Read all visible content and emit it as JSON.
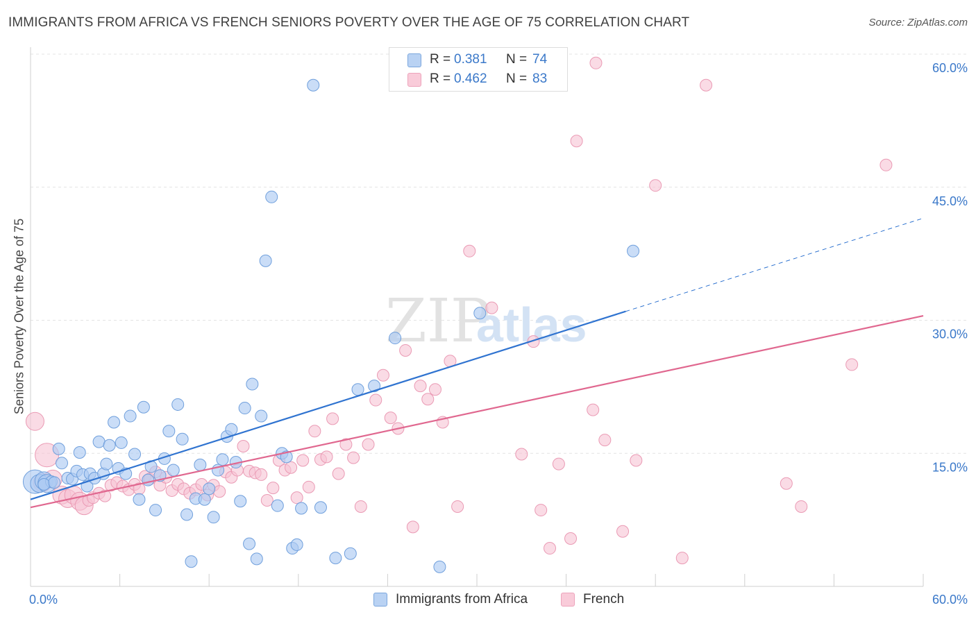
{
  "header": {
    "title": "IMMIGRANTS FROM AFRICA VS FRENCH SENIORS POVERTY OVER THE AGE OF 75 CORRELATION CHART",
    "source": "Source: ZipAtlas.com"
  },
  "watermark": {
    "zip": "ZIP",
    "atlas": "atlas"
  },
  "legend": {
    "r_label": "R =",
    "n_label": "N =",
    "series": [
      {
        "r": "0.381",
        "n": "74"
      },
      {
        "r": "0.462",
        "n": "83"
      }
    ]
  },
  "colors": {
    "blue_fill": "#aecbf2",
    "blue_stroke": "#6f9fdc",
    "blue_line": "#2f73d0",
    "pink_fill": "#f7c3d3",
    "pink_stroke": "#ea9ab4",
    "pink_line": "#e0678f",
    "tick_label": "#3a78c9",
    "grid": "#e3e3e3"
  },
  "chart_data": {
    "type": "scatter",
    "title": "IMMIGRANTS FROM AFRICA VS FRENCH SENIORS POVERTY OVER THE AGE OF 75 CORRELATION CHART",
    "xlabel": "",
    "ylabel": "Seniors Poverty Over the Age of 75",
    "xlim": [
      0,
      60
    ],
    "ylim": [
      0,
      60
    ],
    "x_tick_labels": [
      "0.0%",
      "60.0%"
    ],
    "y_tick_labels": [
      "15.0%",
      "30.0%",
      "45.0%",
      "60.0%"
    ],
    "y_ticks": [
      15,
      30,
      45,
      60
    ],
    "grid": true,
    "legend_position": "top-center",
    "series": [
      {
        "name": "Immigrants from Africa",
        "r": 0.381,
        "n": 74,
        "trend": {
          "x0": 0,
          "y0": 9.8,
          "x1": 40,
          "y1": 31.0,
          "dashed_to_x": 60,
          "dashed_to_y": 41.5
        },
        "points": [
          [
            0.3,
            11.8,
            3
          ],
          [
            0.6,
            11.6,
            2
          ],
          [
            0.9,
            11.9,
            2
          ],
          [
            1.1,
            11.6,
            2
          ],
          [
            1.4,
            11.8,
            1
          ],
          [
            1.9,
            15.5,
            1
          ],
          [
            2.1,
            13.9,
            1
          ],
          [
            2.5,
            12.2,
            1
          ],
          [
            2.8,
            12.1,
            1
          ],
          [
            3.1,
            13.0,
            1
          ],
          [
            3.3,
            15.1,
            1
          ],
          [
            3.5,
            12.6,
            1
          ],
          [
            3.8,
            11.3,
            1
          ],
          [
            4.0,
            12.7,
            1
          ],
          [
            4.3,
            12.2,
            1
          ],
          [
            4.6,
            16.3,
            1
          ],
          [
            4.9,
            12.7,
            1
          ],
          [
            5.1,
            13.8,
            1
          ],
          [
            5.3,
            15.9,
            1
          ],
          [
            5.6,
            18.5,
            1
          ],
          [
            5.9,
            13.3,
            1
          ],
          [
            6.1,
            16.2,
            1
          ],
          [
            6.4,
            12.7,
            1
          ],
          [
            6.7,
            19.2,
            1
          ],
          [
            7.0,
            14.9,
            1
          ],
          [
            7.3,
            9.8,
            1
          ],
          [
            7.6,
            20.2,
            1
          ],
          [
            7.9,
            12.0,
            1
          ],
          [
            8.1,
            13.5,
            1
          ],
          [
            8.4,
            8.6,
            1
          ],
          [
            8.7,
            12.5,
            1
          ],
          [
            9.0,
            14.4,
            1
          ],
          [
            9.3,
            17.5,
            1
          ],
          [
            9.6,
            13.1,
            1
          ],
          [
            9.9,
            20.5,
            1
          ],
          [
            10.2,
            16.6,
            1
          ],
          [
            10.5,
            8.1,
            1
          ],
          [
            10.8,
            2.8,
            1
          ],
          [
            11.1,
            9.9,
            1
          ],
          [
            11.4,
            13.7,
            1
          ],
          [
            11.7,
            9.8,
            1
          ],
          [
            12.0,
            11.0,
            1
          ],
          [
            12.3,
            7.8,
            1
          ],
          [
            12.6,
            13.1,
            1
          ],
          [
            12.9,
            14.3,
            1
          ],
          [
            13.2,
            16.9,
            1
          ],
          [
            13.5,
            17.7,
            1
          ],
          [
            13.8,
            14.0,
            1
          ],
          [
            14.1,
            9.6,
            1
          ],
          [
            14.4,
            20.1,
            1
          ],
          [
            14.7,
            4.8,
            1
          ],
          [
            14.9,
            22.8,
            1
          ],
          [
            15.2,
            3.1,
            1
          ],
          [
            15.5,
            19.2,
            1
          ],
          [
            15.8,
            36.7,
            1
          ],
          [
            16.2,
            43.9,
            1
          ],
          [
            16.6,
            9.1,
            1
          ],
          [
            16.9,
            15.0,
            1
          ],
          [
            17.2,
            14.6,
            1
          ],
          [
            17.6,
            4.3,
            1
          ],
          [
            17.9,
            4.7,
            1
          ],
          [
            18.2,
            8.8,
            1
          ],
          [
            19.0,
            56.5,
            1
          ],
          [
            19.5,
            8.9,
            1
          ],
          [
            20.5,
            3.2,
            1
          ],
          [
            21.5,
            3.7,
            1
          ],
          [
            22.0,
            22.2,
            1
          ],
          [
            23.1,
            22.6,
            1
          ],
          [
            24.5,
            28.0,
            1
          ],
          [
            27.5,
            2.2,
            1
          ],
          [
            30.2,
            30.8,
            1
          ],
          [
            40.5,
            37.8,
            1
          ],
          [
            0.9,
            11.5,
            1
          ],
          [
            1.6,
            11.7,
            1
          ]
        ]
      },
      {
        "name": "French",
        "r": 0.462,
        "n": 83,
        "trend": {
          "x0": 0,
          "y0": 8.9,
          "x1": 60,
          "y1": 30.5
        },
        "points": [
          [
            0.3,
            18.6,
            2
          ],
          [
            0.8,
            11.7,
            2
          ],
          [
            1.1,
            14.8,
            3
          ],
          [
            1.5,
            12.1,
            2
          ],
          [
            2.1,
            10.3,
            2
          ],
          [
            2.5,
            9.9,
            2
          ],
          [
            2.9,
            10.3,
            2
          ],
          [
            3.3,
            9.6,
            2
          ],
          [
            3.6,
            9.1,
            2
          ],
          [
            3.9,
            9.7,
            1
          ],
          [
            4.2,
            10.0,
            1
          ],
          [
            4.6,
            10.5,
            1
          ],
          [
            5.0,
            10.2,
            1
          ],
          [
            5.4,
            11.4,
            1
          ],
          [
            5.8,
            11.7,
            1
          ],
          [
            6.2,
            11.3,
            1
          ],
          [
            6.6,
            10.9,
            1
          ],
          [
            7.0,
            11.5,
            1
          ],
          [
            7.3,
            11.0,
            1
          ],
          [
            7.7,
            12.4,
            1
          ],
          [
            8.0,
            12.1,
            1
          ],
          [
            8.4,
            12.9,
            1
          ],
          [
            8.7,
            11.4,
            1
          ],
          [
            9.1,
            12.3,
            1
          ],
          [
            9.5,
            10.8,
            1
          ],
          [
            9.9,
            11.5,
            1
          ],
          [
            10.3,
            11.0,
            1
          ],
          [
            10.7,
            10.5,
            1
          ],
          [
            11.1,
            10.9,
            1
          ],
          [
            11.5,
            11.5,
            1
          ],
          [
            11.9,
            10.3,
            1
          ],
          [
            12.3,
            11.4,
            1
          ],
          [
            12.7,
            10.7,
            1
          ],
          [
            13.1,
            12.9,
            1
          ],
          [
            13.5,
            12.3,
            1
          ],
          [
            13.9,
            13.1,
            1
          ],
          [
            14.3,
            15.8,
            1
          ],
          [
            14.7,
            13.0,
            1
          ],
          [
            15.1,
            12.8,
            1
          ],
          [
            15.5,
            12.6,
            1
          ],
          [
            15.9,
            9.7,
            1
          ],
          [
            16.3,
            11.1,
            1
          ],
          [
            16.7,
            14.2,
            1
          ],
          [
            17.1,
            13.1,
            1
          ],
          [
            17.5,
            13.4,
            1
          ],
          [
            17.9,
            10.0,
            1
          ],
          [
            18.3,
            14.2,
            1
          ],
          [
            18.7,
            11.2,
            1
          ],
          [
            19.1,
            17.5,
            1
          ],
          [
            19.5,
            14.3,
            1
          ],
          [
            19.9,
            14.6,
            1
          ],
          [
            20.3,
            18.9,
            1
          ],
          [
            20.7,
            12.7,
            1
          ],
          [
            21.2,
            16.0,
            1
          ],
          [
            21.7,
            14.5,
            1
          ],
          [
            22.2,
            9.0,
            1
          ],
          [
            22.7,
            16.0,
            1
          ],
          [
            23.2,
            21.0,
            1
          ],
          [
            23.7,
            23.8,
            1
          ],
          [
            24.2,
            19.0,
            1
          ],
          [
            24.7,
            17.8,
            1
          ],
          [
            25.2,
            26.6,
            1
          ],
          [
            25.7,
            6.7,
            1
          ],
          [
            26.2,
            22.6,
            1
          ],
          [
            26.7,
            21.1,
            1
          ],
          [
            27.2,
            22.2,
            1
          ],
          [
            27.7,
            18.5,
            1
          ],
          [
            28.2,
            25.4,
            1
          ],
          [
            28.7,
            9.0,
            1
          ],
          [
            29.5,
            37.8,
            1
          ],
          [
            31.0,
            31.4,
            1
          ],
          [
            33.0,
            14.9,
            1
          ],
          [
            33.8,
            27.6,
            1
          ],
          [
            34.3,
            8.6,
            1
          ],
          [
            34.9,
            4.3,
            1
          ],
          [
            35.5,
            13.8,
            1
          ],
          [
            36.3,
            5.4,
            1
          ],
          [
            36.7,
            50.2,
            1
          ],
          [
            37.8,
            19.9,
            1
          ],
          [
            38.0,
            59.0,
            1
          ],
          [
            38.6,
            16.5,
            1
          ],
          [
            39.8,
            6.2,
            1
          ],
          [
            40.7,
            14.2,
            1
          ],
          [
            42.0,
            45.2,
            1
          ],
          [
            43.8,
            3.2,
            1
          ],
          [
            45.4,
            56.5,
            1
          ],
          [
            50.8,
            11.6,
            1
          ],
          [
            51.8,
            9.0,
            1
          ],
          [
            55.2,
            25.0,
            1
          ],
          [
            57.5,
            47.5,
            1
          ]
        ]
      }
    ]
  },
  "bottom_legend": [
    "Immigrants from Africa",
    "French"
  ]
}
